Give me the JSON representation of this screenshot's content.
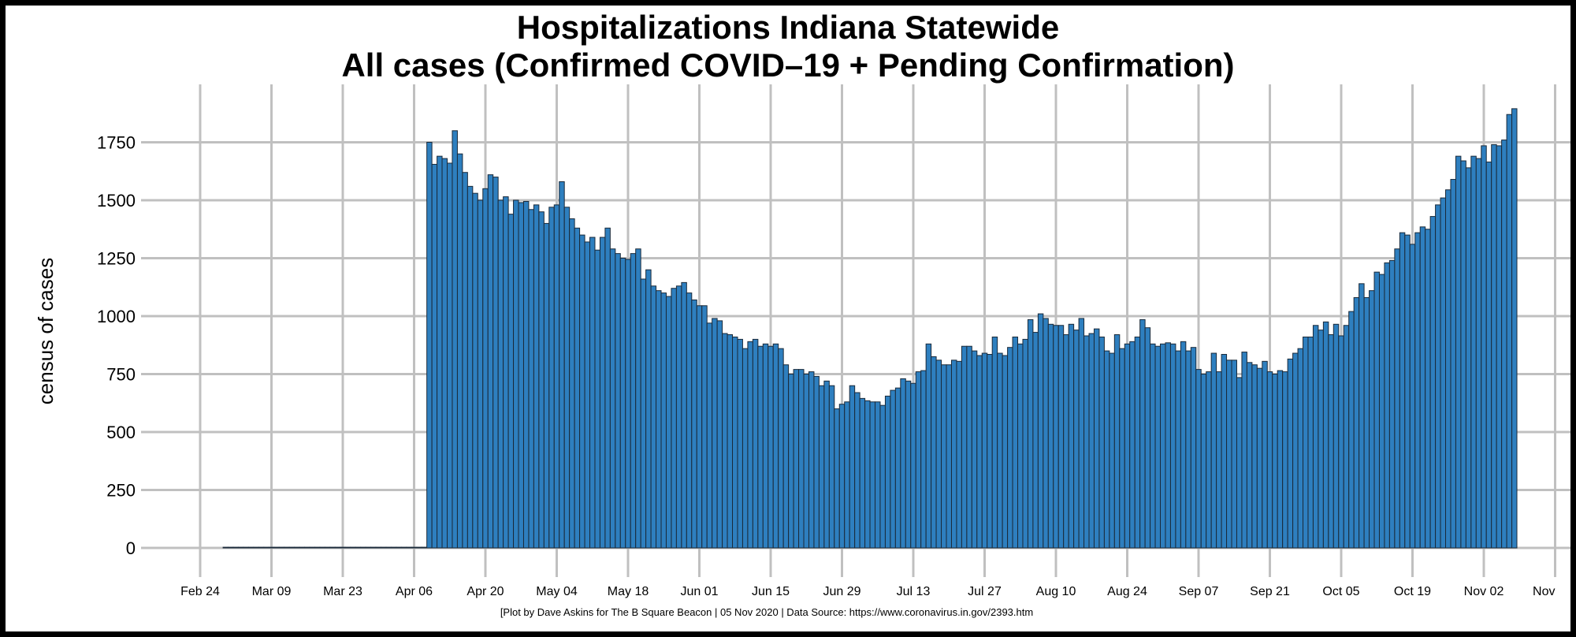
{
  "chart_data": {
    "type": "bar",
    "title_lines": [
      "Hospitalizations Indiana Statewide",
      "All cases (Confirmed COVID–19 + Pending Confirmation)"
    ],
    "ylabel": "census of cases",
    "xlabel": "",
    "ylim": [
      0,
      1900
    ],
    "yticks": [
      0,
      250,
      500,
      750,
      1000,
      1250,
      1500,
      1750
    ],
    "ytick_labels": [
      "0",
      "250",
      "500",
      "750",
      "1000",
      "1250",
      "1500",
      "1750"
    ],
    "xticks": [
      "Feb 24",
      "Mar 09",
      "Mar 23",
      "Apr 06",
      "Apr 20",
      "May 04",
      "May 18",
      "Jun 01",
      "Jun 15",
      "Jun 29",
      "Jul 13",
      "Jul 27",
      "Aug 10",
      "Aug 24",
      "Sep 07",
      "Sep 21",
      "Oct 05",
      "Oct 19",
      "Nov 02",
      "Nov"
    ],
    "x_start": "Feb 29",
    "grid": true,
    "bar_color": "#2e7fbf",
    "series": [
      {
        "name": "All cases",
        "values": [
          3,
          3,
          3,
          3,
          3,
          3,
          3,
          3,
          3,
          3,
          3,
          3,
          3,
          3,
          3,
          3,
          3,
          3,
          3,
          3,
          3,
          3,
          3,
          3,
          3,
          3,
          3,
          3,
          3,
          3,
          3,
          3,
          3,
          3,
          3,
          3,
          3,
          3,
          3,
          3,
          1750,
          1655,
          1690,
          1680,
          1660,
          1800,
          1700,
          1620,
          1560,
          1530,
          1500,
          1550,
          1610,
          1600,
          1500,
          1515,
          1440,
          1500,
          1490,
          1495,
          1460,
          1480,
          1450,
          1400,
          1470,
          1480,
          1580,
          1470,
          1420,
          1380,
          1350,
          1320,
          1340,
          1285,
          1340,
          1380,
          1290,
          1270,
          1250,
          1245,
          1270,
          1290,
          1160,
          1200,
          1130,
          1110,
          1100,
          1085,
          1120,
          1130,
          1145,
          1100,
          1070,
          1045,
          1045,
          970,
          990,
          980,
          925,
          920,
          910,
          900,
          860,
          890,
          900,
          870,
          880,
          870,
          880,
          860,
          790,
          750,
          770,
          770,
          750,
          760,
          740,
          700,
          720,
          700,
          600,
          620,
          630,
          700,
          670,
          645,
          635,
          630,
          630,
          615,
          655,
          680,
          690,
          730,
          720,
          710,
          760,
          765,
          880,
          825,
          810,
          790,
          790,
          810,
          805,
          870,
          870,
          850,
          830,
          840,
          835,
          910,
          840,
          830,
          865,
          910,
          880,
          900,
          985,
          930,
          1010,
          990,
          965,
          960,
          960,
          920,
          965,
          940,
          990,
          915,
          925,
          945,
          910,
          850,
          840,
          920,
          860,
          880,
          890,
          910,
          985,
          950,
          880,
          870,
          880,
          885,
          880,
          850,
          890,
          850,
          865,
          770,
          750,
          760,
          840,
          760,
          835,
          810,
          810,
          735,
          845,
          800,
          790,
          775,
          805,
          760,
          750,
          765,
          760,
          815,
          840,
          860,
          910,
          910,
          960,
          940,
          975,
          920,
          965,
          915,
          960,
          1020,
          1080,
          1140,
          1080,
          1110,
          1190,
          1180,
          1230,
          1240,
          1290,
          1360,
          1350,
          1310,
          1360,
          1385,
          1375,
          1430,
          1480,
          1510,
          1545,
          1590,
          1690,
          1670,
          1640,
          1690,
          1680,
          1735,
          1665,
          1740,
          1735,
          1760,
          1870,
          1895
        ]
      }
    ]
  },
  "caption": "[Plot by Dave Askins for The B Square Beacon | 05 Nov 2020 | Data Source: https://www.coronavirus.in.gov/2393.htm"
}
